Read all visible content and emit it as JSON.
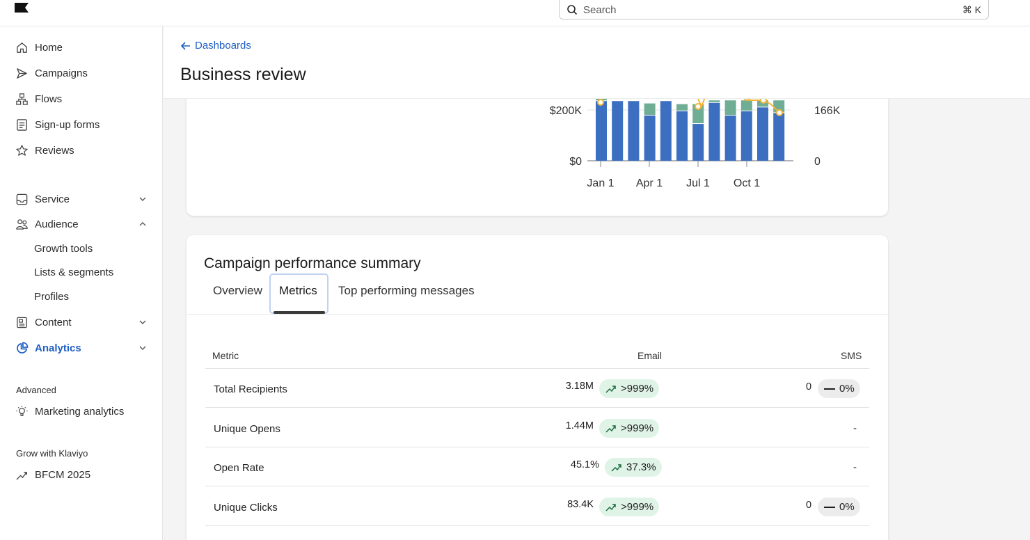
{
  "topbar": {
    "search_placeholder": "Search",
    "search_shortcut": "⌘ K",
    "logo": "klaviyo-flag-logo"
  },
  "sidebar": {
    "items": [
      {
        "label": "Home",
        "icon": "home-icon"
      },
      {
        "label": "Campaigns",
        "icon": "send-icon"
      },
      {
        "label": "Flows",
        "icon": "flows-icon"
      },
      {
        "label": "Sign-up forms",
        "icon": "form-icon"
      },
      {
        "label": "Reviews",
        "icon": "star-icon"
      },
      {
        "label": "Service",
        "icon": "inbox-icon"
      },
      {
        "label": "Audience",
        "icon": "audience-icon"
      },
      {
        "label": "Content",
        "icon": "content-icon"
      },
      {
        "label": "Analytics",
        "icon": "analytics-icon"
      }
    ],
    "audience_subitems": [
      "Growth tools",
      "Lists & segments",
      "Profiles"
    ],
    "advanced_label": "Advanced",
    "marketing_analytics": "Marketing analytics",
    "grow_label": "Grow with Klaviyo",
    "bfcm": "BFCM 2025",
    "active_color": "#1f5fc4"
  },
  "header": {
    "back_label": "Dashboards",
    "title": "Business review"
  },
  "chart_data": {
    "type": "bar",
    "x_tick_labels": [
      "Jan 1",
      "Apr 1",
      "Jul 1",
      "Oct 1"
    ],
    "y_left_ticks": [
      "$0",
      "$200K"
    ],
    "y_right_ticks": [
      "0",
      "166K"
    ],
    "colors": {
      "primary": "#3d6fc0",
      "secondary": "#6fae95",
      "line": "#f3b63a"
    },
    "primary_values": [
      235,
      235,
      235,
      178,
      235,
      195,
      145,
      228,
      178,
      195,
      210,
      188
    ],
    "secondary_values": [
      20,
      0,
      0,
      45,
      0,
      25,
      75,
      7,
      57,
      40,
      25,
      47
    ]
  },
  "summary": {
    "title": "Campaign performance summary",
    "tabs": [
      "Overview",
      "Metrics",
      "Top performing messages"
    ],
    "active_tab": "Metrics",
    "columns": [
      "Metric",
      "Email",
      "SMS"
    ],
    "rows": [
      {
        "name": "Total Recipients",
        "email": "3.18M",
        "email_change": ">999%",
        "sms": "0",
        "sms_change": "0%"
      },
      {
        "name": "Unique Opens",
        "email": "1.44M",
        "email_change": ">999%",
        "sms": "-",
        "sms_change": ""
      },
      {
        "name": "Open Rate",
        "email": "45.1%",
        "email_change": "37.3%",
        "sms": "-",
        "sms_change": ""
      },
      {
        "name": "Unique Clicks",
        "email": "83.4K",
        "email_change": ">999%",
        "sms": "0",
        "sms_change": "0%"
      }
    ]
  }
}
